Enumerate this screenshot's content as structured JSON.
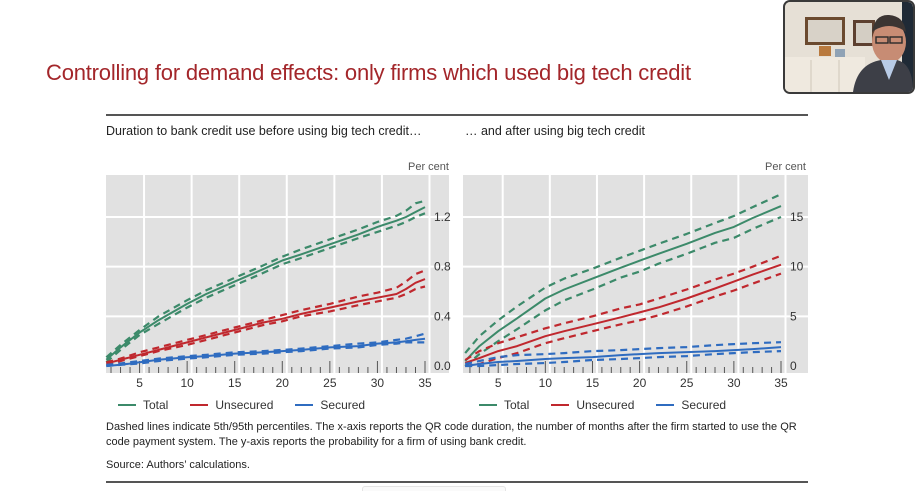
{
  "slide": {
    "title": "Controlling for demand effects: only firms which used big tech credit",
    "title_color": "#a3262a"
  },
  "panels": {
    "left": {
      "title": "Duration to bank credit use before using big tech credit…",
      "unit": "Per cent"
    },
    "right": {
      "title": "… and after using big tech credit",
      "unit": "Per cent"
    }
  },
  "legend": {
    "total": "Total",
    "unsecured": "Unsecured",
    "secured": "Secured"
  },
  "colors": {
    "total": "#3c8a6a",
    "unsecured": "#c0282e",
    "secured": "#2f6cc0",
    "plot_bg": "#e1e1e1",
    "grid": "#ffffff"
  },
  "footnote": "Dashed lines indicate 5th/95th percentiles. The x-axis reports the QR code duration, the number of months after the firm started to use the QR code payment system. The y-axis reports the probability for a firm of using bank credit.",
  "source": "Source: Authors’ calculations.",
  "webcam": {
    "icon": "video-participant"
  },
  "chart_data": [
    {
      "type": "line",
      "title": "Duration to bank credit use before using big tech credit…",
      "xlabel": "",
      "ylabel": "Per cent",
      "xlim": [
        1.5,
        37.5
      ],
      "ylim": [
        0,
        1.53
      ],
      "xticks": [
        5,
        10,
        15,
        20,
        25,
        30,
        35
      ],
      "yticks": [
        0.0,
        0.4,
        0.8,
        1.2
      ],
      "ytick_labels": [
        "0.0",
        "0.4",
        "0.8",
        "1.2"
      ],
      "grid": true,
      "legend_position": "bottom",
      "x": [
        1.5,
        3,
        5,
        7,
        10,
        12,
        15,
        18,
        20,
        22,
        25,
        28,
        30,
        32,
        33,
        34,
        35
      ],
      "series": [
        {
          "name": "Total",
          "style": "solid",
          "values": [
            0.05,
            0.15,
            0.27,
            0.37,
            0.5,
            0.58,
            0.68,
            0.78,
            0.85,
            0.9,
            0.98,
            1.06,
            1.12,
            1.17,
            1.2,
            1.24,
            1.28
          ]
        },
        {
          "name": "Total 95th",
          "style": "dashed",
          "values": [
            0.07,
            0.17,
            0.29,
            0.4,
            0.53,
            0.61,
            0.71,
            0.81,
            0.88,
            0.94,
            1.02,
            1.1,
            1.16,
            1.21,
            1.25,
            1.31,
            1.33
          ]
        },
        {
          "name": "Total 5th",
          "style": "dashed",
          "values": [
            0.03,
            0.13,
            0.25,
            0.34,
            0.47,
            0.55,
            0.65,
            0.75,
            0.82,
            0.87,
            0.95,
            1.03,
            1.08,
            1.13,
            1.16,
            1.2,
            1.23
          ]
        },
        {
          "name": "Unsecured",
          "style": "solid",
          "values": [
            0.02,
            0.05,
            0.09,
            0.13,
            0.19,
            0.23,
            0.29,
            0.35,
            0.38,
            0.42,
            0.47,
            0.52,
            0.55,
            0.58,
            0.62,
            0.67,
            0.7
          ]
        },
        {
          "name": "Unsecured 95th",
          "style": "dashed",
          "values": [
            0.03,
            0.06,
            0.11,
            0.15,
            0.21,
            0.25,
            0.31,
            0.37,
            0.41,
            0.45,
            0.5,
            0.56,
            0.59,
            0.63,
            0.68,
            0.74,
            0.77
          ]
        },
        {
          "name": "Unsecured 5th",
          "style": "dashed",
          "values": [
            0.01,
            0.04,
            0.08,
            0.12,
            0.17,
            0.21,
            0.27,
            0.33,
            0.36,
            0.4,
            0.44,
            0.49,
            0.52,
            0.55,
            0.58,
            0.62,
            0.64
          ]
        },
        {
          "name": "Secured",
          "style": "solid",
          "values": [
            0.0,
            0.01,
            0.03,
            0.05,
            0.07,
            0.08,
            0.1,
            0.11,
            0.12,
            0.13,
            0.15,
            0.16,
            0.18,
            0.19,
            0.2,
            0.21,
            0.22
          ]
        },
        {
          "name": "Secured 95th",
          "style": "dashed",
          "values": [
            0.01,
            0.02,
            0.04,
            0.06,
            0.08,
            0.09,
            0.11,
            0.12,
            0.13,
            0.14,
            0.16,
            0.18,
            0.19,
            0.21,
            0.22,
            0.24,
            0.26
          ]
        },
        {
          "name": "Secured 5th",
          "style": "dashed",
          "values": [
            0.0,
            0.01,
            0.02,
            0.04,
            0.06,
            0.07,
            0.09,
            0.1,
            0.11,
            0.12,
            0.14,
            0.15,
            0.17,
            0.18,
            0.19,
            0.19,
            0.19
          ]
        }
      ]
    },
    {
      "type": "line",
      "title": "… and after using big tech credit",
      "xlabel": "",
      "ylabel": "Per cent",
      "xlim": [
        1.5,
        37.5
      ],
      "ylim": [
        0,
        19.2
      ],
      "xticks": [
        5,
        10,
        15,
        20,
        25,
        30,
        35
      ],
      "yticks": [
        0,
        5,
        10,
        15
      ],
      "ytick_labels": [
        "0",
        "5",
        "10",
        "15"
      ],
      "grid": true,
      "legend_position": "bottom",
      "x": [
        1.5,
        3,
        5,
        7,
        10,
        12,
        15,
        18,
        20,
        22,
        25,
        28,
        30,
        32,
        35
      ],
      "series": [
        {
          "name": "Total",
          "style": "solid",
          "values": [
            0.5,
            2.0,
            3.5,
            4.8,
            6.8,
            7.7,
            8.8,
            9.9,
            10.6,
            11.3,
            12.3,
            13.4,
            14.0,
            14.9,
            16.1
          ]
        },
        {
          "name": "Total 95th",
          "style": "dashed",
          "values": [
            1.3,
            3.0,
            4.6,
            6.0,
            7.9,
            8.8,
            9.8,
            10.9,
            11.6,
            12.3,
            13.3,
            14.4,
            15.1,
            16.0,
            17.3
          ]
        },
        {
          "name": "Total 5th",
          "style": "dashed",
          "values": [
            0.0,
            1.2,
            2.5,
            3.7,
            5.6,
            6.6,
            7.7,
            8.9,
            9.5,
            10.3,
            11.3,
            12.4,
            12.9,
            13.8,
            15.0
          ]
        },
        {
          "name": "Unsecured",
          "style": "solid",
          "values": [
            0.3,
            0.8,
            1.5,
            2.0,
            3.0,
            3.5,
            4.2,
            4.9,
            5.4,
            5.9,
            6.8,
            7.8,
            8.5,
            9.2,
            10.2
          ]
        },
        {
          "name": "Unsecured 95th",
          "style": "dashed",
          "values": [
            0.6,
            1.5,
            2.3,
            2.9,
            3.8,
            4.3,
            5.0,
            5.8,
            6.2,
            6.8,
            7.7,
            8.7,
            9.3,
            10.0,
            11.1
          ]
        },
        {
          "name": "Unsecured 5th",
          "style": "dashed",
          "values": [
            0.0,
            0.2,
            0.8,
            1.3,
            2.3,
            2.8,
            3.5,
            4.2,
            4.6,
            5.1,
            6.0,
            7.0,
            7.6,
            8.3,
            9.3
          ]
        },
        {
          "name": "Secured",
          "style": "solid",
          "values": [
            0.0,
            0.2,
            0.4,
            0.5,
            0.7,
            0.8,
            0.9,
            1.1,
            1.2,
            1.3,
            1.4,
            1.5,
            1.6,
            1.7,
            1.9
          ]
        },
        {
          "name": "Secured 95th",
          "style": "dashed",
          "values": [
            0.2,
            0.5,
            0.9,
            1.1,
            1.2,
            1.3,
            1.5,
            1.6,
            1.7,
            1.8,
            1.9,
            2.1,
            2.2,
            2.3,
            2.4
          ]
        },
        {
          "name": "Secured 5th",
          "style": "dashed",
          "values": [
            0.0,
            0.0,
            0.1,
            0.2,
            0.3,
            0.4,
            0.6,
            0.7,
            0.8,
            0.9,
            1.0,
            1.2,
            1.3,
            1.4,
            1.5
          ]
        }
      ]
    }
  ]
}
